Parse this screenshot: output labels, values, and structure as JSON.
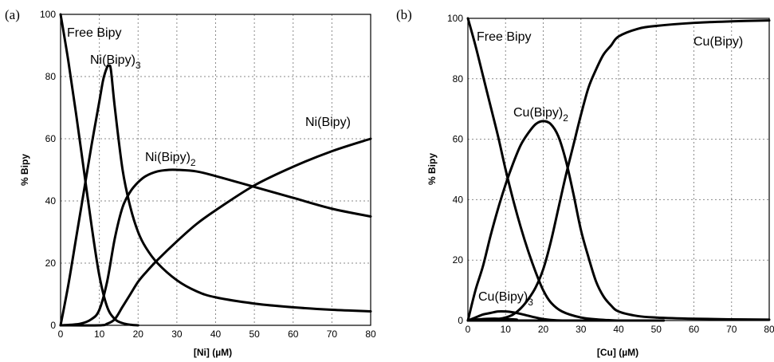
{
  "chart_data": [
    {
      "type": "line",
      "panel_label": "(a)",
      "xlabel": "[Ni] (µM)",
      "ylabel": "% Bipy",
      "xlim": [
        0,
        80
      ],
      "ylim": [
        0,
        100
      ],
      "xticks": [
        0,
        10,
        20,
        30,
        40,
        50,
        60,
        70,
        80
      ],
      "yticks": [
        0,
        20,
        40,
        60,
        80,
        100
      ],
      "grid": true,
      "series": [
        {
          "name": "Free Bipy",
          "label_main": "Free Bipy",
          "label_sub": "",
          "x": [
            0,
            2,
            4,
            6,
            8,
            10,
            12,
            14,
            16,
            18,
            20
          ],
          "y": [
            100,
            85,
            68,
            50,
            32,
            16,
            6,
            2,
            0.7,
            0.2,
            0
          ]
        },
        {
          "name": "Ni(Bipy)3",
          "label_main": "Ni(Bipy)",
          "label_sub": "3",
          "x": [
            0,
            2,
            4,
            6,
            8,
            10,
            11,
            12,
            12.5,
            13,
            14,
            16,
            18,
            20,
            22,
            25,
            30,
            35,
            40,
            50,
            60,
            70,
            80
          ],
          "y": [
            0,
            13,
            28,
            43,
            58,
            72,
            79,
            83,
            83.5,
            82,
            70,
            50,
            38,
            30,
            25,
            20,
            14.5,
            11,
            9,
            7,
            5.8,
            5,
            4.5
          ]
        },
        {
          "name": "Ni(Bipy)2",
          "label_main": "Ni(Bipy)",
          "label_sub": "2",
          "x": [
            0,
            5,
            8,
            10,
            12,
            14,
            16,
            18,
            20,
            22,
            25,
            28,
            30,
            35,
            40,
            50,
            60,
            70,
            80
          ],
          "y": [
            0,
            0.5,
            2,
            5,
            14,
            28,
            38,
            43,
            46,
            48,
            49.5,
            50,
            50,
            49.5,
            48,
            44.5,
            41,
            37.5,
            35
          ]
        },
        {
          "name": "Ni(Bipy)",
          "label_main": "Ni(Bipy)",
          "label_sub": "",
          "x": [
            0,
            10,
            12,
            14,
            16,
            18,
            20,
            22,
            25,
            30,
            35,
            40,
            50,
            60,
            70,
            80
          ],
          "y": [
            0,
            0,
            0.5,
            2,
            6,
            10,
            14,
            17,
            21,
            27,
            32.5,
            37,
            45,
            51,
            56,
            60
          ]
        }
      ]
    },
    {
      "type": "line",
      "panel_label": "(b)",
      "xlabel": "[Cu] (µM)",
      "ylabel": "% Bipy",
      "xlim": [
        0,
        80
      ],
      "ylim": [
        0,
        100
      ],
      "xticks": [
        0,
        10,
        20,
        30,
        40,
        50,
        60,
        70,
        80
      ],
      "yticks": [
        0,
        20,
        40,
        60,
        80,
        100
      ],
      "grid": true,
      "series": [
        {
          "name": "Free Bipy",
          "label_main": "Free Bipy",
          "label_sub": "",
          "x": [
            0,
            2,
            4,
            6,
            8,
            10,
            12,
            14,
            16,
            18,
            20,
            22,
            25,
            30,
            35,
            40
          ],
          "y": [
            100,
            91,
            81,
            71,
            61,
            50,
            40,
            31,
            23,
            16,
            10,
            6,
            3,
            1,
            0.3,
            0
          ]
        },
        {
          "name": "Cu(Bipy)2",
          "label_main": "Cu(Bipy)",
          "label_sub": "2",
          "x": [
            0,
            2,
            4,
            6,
            8,
            10,
            12,
            14,
            16,
            18,
            20,
            22,
            24,
            26,
            28,
            30,
            32,
            34,
            36,
            38,
            40,
            45,
            50,
            60,
            70,
            80
          ],
          "y": [
            0,
            10,
            18,
            28,
            37,
            45,
            52,
            58,
            62,
            65,
            66,
            65,
            61,
            53,
            42,
            30,
            21,
            13,
            8,
            5,
            3,
            1.5,
            1,
            0.6,
            0.4,
            0.3
          ]
        },
        {
          "name": "Cu(Bipy)",
          "label_main": "Cu(Bipy)",
          "label_sub": "",
          "x": [
            0,
            6,
            8,
            10,
            12,
            14,
            16,
            18,
            20,
            22,
            24,
            26,
            28,
            30,
            32,
            34,
            36,
            38,
            40,
            45,
            50,
            60,
            70,
            80
          ],
          "y": [
            0,
            0.2,
            0.5,
            1,
            2,
            4,
            7,
            11,
            17,
            26,
            37,
            48,
            58,
            68,
            77,
            83,
            88,
            91,
            94,
            96.5,
            97.5,
            98.5,
            99,
            99.3
          ]
        },
        {
          "name": "Cu(Bipy)3",
          "label_main": "Cu(Bipy)",
          "label_sub": "3",
          "x": [
            0,
            2,
            4,
            6,
            8,
            10,
            12,
            14,
            16,
            18,
            20,
            22,
            25,
            30
          ],
          "y": [
            0,
            1,
            2,
            2.5,
            3,
            3,
            2.7,
            2.2,
            1.6,
            1,
            0.5,
            0.2,
            0,
            0
          ]
        },
        {
          "name": "Cu baseline",
          "label_main": "",
          "label_sub": "",
          "x": [
            0,
            52
          ],
          "y": [
            0,
            0
          ]
        },
        {
          "name": "Cu tail",
          "label_main": "",
          "label_sub": "",
          "x": [
            2,
            4,
            6,
            8,
            10,
            12,
            13
          ],
          "y": [
            0.3,
            0.5,
            0.6,
            0.6,
            0.5,
            0.4,
            0.3
          ]
        }
      ]
    }
  ]
}
